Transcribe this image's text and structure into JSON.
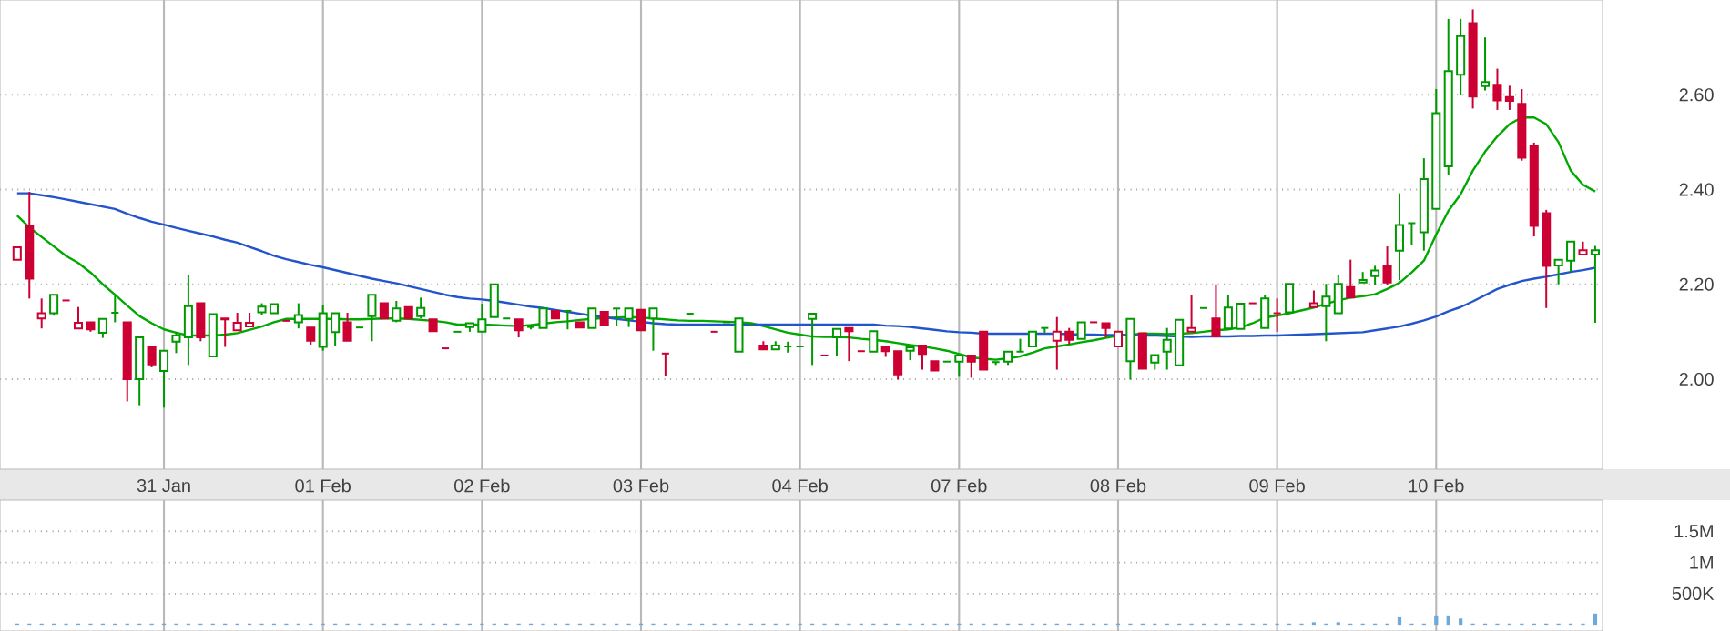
{
  "chart_data": [
    {
      "type": "candlestick",
      "categories": [
        null,
        null,
        null,
        null,
        null,
        null,
        null,
        null,
        null,
        null,
        null,
        null,
        "31 Jan",
        null,
        null,
        null,
        null,
        null,
        null,
        null,
        null,
        null,
        null,
        null,
        null,
        "01 Feb",
        null,
        null,
        null,
        null,
        null,
        null,
        null,
        null,
        null,
        null,
        null,
        null,
        "02 Feb",
        null,
        null,
        null,
        null,
        null,
        null,
        null,
        null,
        null,
        null,
        null,
        null,
        "03 Feb",
        null,
        null,
        null,
        null,
        null,
        null,
        null,
        null,
        null,
        null,
        null,
        null,
        "04 Feb",
        null,
        null,
        null,
        null,
        null,
        null,
        null,
        null,
        null,
        null,
        null,
        null,
        "07 Feb",
        null,
        null,
        null,
        null,
        null,
        null,
        null,
        null,
        null,
        null,
        null,
        null,
        "08 Feb",
        null,
        null,
        null,
        null,
        null,
        null,
        null,
        null,
        null,
        null,
        null,
        null,
        "09 Feb",
        null,
        null,
        null,
        null,
        null,
        null,
        null,
        null,
        null,
        null,
        null,
        null,
        "10 Feb",
        null,
        null,
        null,
        null,
        null,
        null,
        null,
        null,
        null,
        null,
        null,
        null,
        null
      ],
      "ohlc": [
        [
          2.252,
          2.278,
          2.252,
          2.278
        ],
        [
          2.324,
          2.395,
          2.17,
          2.212
        ],
        [
          2.128,
          2.17,
          2.107,
          2.139
        ],
        [
          2.139,
          2.178,
          2.134,
          2.178
        ],
        [
          2.166,
          2.166,
          2.166,
          2.166
        ],
        [
          2.107,
          2.152,
          2.107,
          2.119
        ],
        [
          2.12,
          2.12,
          2.1,
          2.105
        ],
        [
          2.098,
          2.127,
          2.087,
          2.127
        ],
        [
          2.14,
          2.178,
          2.12,
          2.14
        ],
        [
          2.12,
          2.12,
          1.953,
          2.0
        ],
        [
          2.0,
          2.088,
          1.945,
          2.088
        ],
        [
          2.069,
          2.069,
          2.025,
          2.031
        ],
        [
          2.017,
          2.06,
          1.94,
          2.06
        ],
        [
          2.079,
          2.1,
          2.055,
          2.092
        ],
        [
          2.088,
          2.22,
          2.03,
          2.154
        ],
        [
          2.16,
          2.16,
          2.08,
          2.088
        ],
        [
          2.048,
          2.137,
          2.048,
          2.137
        ],
        [
          2.128,
          2.128,
          2.068,
          2.126
        ],
        [
          2.103,
          2.14,
          2.103,
          2.119
        ],
        [
          2.111,
          2.14,
          2.111,
          2.119
        ],
        [
          2.141,
          2.16,
          2.136,
          2.153
        ],
        [
          2.139,
          2.158,
          2.139,
          2.158
        ],
        [
          2.123,
          2.123,
          2.123,
          2.123
        ],
        [
          2.12,
          2.16,
          2.107,
          2.135
        ],
        [
          2.109,
          2.109,
          2.073,
          2.081
        ],
        [
          2.068,
          2.157,
          2.06,
          2.139
        ],
        [
          2.099,
          2.139,
          2.07,
          2.139
        ],
        [
          2.12,
          2.14,
          2.081,
          2.081
        ],
        [
          2.109,
          2.109,
          2.109,
          2.109
        ],
        [
          2.133,
          2.178,
          2.08,
          2.178
        ],
        [
          2.16,
          2.16,
          2.128,
          2.128
        ],
        [
          2.123,
          2.165,
          2.12,
          2.149
        ],
        [
          2.152,
          2.152,
          2.128,
          2.128
        ],
        [
          2.133,
          2.172,
          2.128,
          2.15
        ],
        [
          2.126,
          2.126,
          2.101,
          2.101
        ],
        [
          2.065,
          2.065,
          2.065,
          2.065
        ],
        [
          2.1,
          2.1,
          2.1,
          2.1
        ],
        [
          2.11,
          2.118,
          2.1,
          2.118
        ],
        [
          2.1,
          2.159,
          2.1,
          2.126
        ],
        [
          2.131,
          2.2,
          2.131,
          2.2
        ],
        [
          2.128,
          2.128,
          2.128,
          2.128
        ],
        [
          2.126,
          2.126,
          2.088,
          2.103
        ],
        [
          2.11,
          2.114,
          2.105,
          2.11
        ],
        [
          2.108,
          2.149,
          2.108,
          2.149
        ],
        [
          2.144,
          2.144,
          2.128,
          2.128
        ],
        [
          2.144,
          2.144,
          2.105,
          2.144
        ],
        [
          2.12,
          2.12,
          2.109,
          2.109
        ],
        [
          2.108,
          2.149,
          2.108,
          2.149
        ],
        [
          2.142,
          2.142,
          2.114,
          2.114
        ],
        [
          2.149,
          2.149,
          2.113,
          2.149
        ],
        [
          2.127,
          2.149,
          2.11,
          2.149
        ],
        [
          2.146,
          2.146,
          2.103,
          2.103
        ],
        [
          2.128,
          2.149,
          2.06,
          2.149
        ],
        [
          2.054,
          2.054,
          2.006,
          2.054
        ],
        null,
        [
          2.138,
          2.138,
          2.138,
          2.138
        ],
        null,
        [
          2.1,
          2.1,
          2.1,
          2.1
        ],
        [
          2.12,
          2.12,
          2.12,
          2.12
        ],
        [
          2.058,
          2.128,
          2.058,
          2.128
        ],
        [
          2.117,
          2.117,
          2.117,
          2.117
        ],
        [
          2.071,
          2.08,
          2.063,
          2.063
        ],
        [
          2.063,
          2.08,
          2.063,
          2.071
        ],
        [
          2.069,
          2.079,
          2.056,
          2.069
        ],
        [
          2.069,
          2.069,
          2.069,
          2.069
        ],
        [
          2.127,
          2.138,
          2.03,
          2.138
        ],
        [
          2.05,
          2.05,
          2.05,
          2.05
        ],
        [
          2.088,
          2.106,
          2.049,
          2.106
        ],
        [
          2.108,
          2.108,
          2.038,
          2.101
        ],
        [
          2.059,
          2.059,
          2.059,
          2.059
        ],
        [
          2.058,
          2.101,
          2.058,
          2.101
        ],
        [
          2.069,
          2.069,
          2.047,
          2.059
        ],
        [
          2.059,
          2.059,
          1.999,
          2.01
        ],
        [
          2.06,
          2.067,
          2.04,
          2.067
        ],
        [
          2.071,
          2.071,
          2.02,
          2.053
        ],
        [
          2.038,
          2.038,
          2.018,
          2.018
        ],
        [
          2.037,
          2.037,
          2.037,
          2.037
        ],
        [
          2.037,
          2.05,
          2.005,
          2.05
        ],
        [
          2.05,
          2.05,
          2.003,
          2.037
        ],
        [
          2.1,
          2.1,
          2.02,
          2.02
        ],
        [
          2.036,
          2.036,
          2.03,
          2.036
        ],
        [
          2.037,
          2.058,
          2.03,
          2.058
        ],
        [
          2.058,
          2.085,
          2.058,
          2.058
        ],
        [
          2.069,
          2.1,
          2.069,
          2.1
        ],
        [
          2.108,
          2.108,
          2.098,
          2.108
        ],
        [
          2.081,
          2.131,
          2.02,
          2.1
        ],
        [
          2.1,
          2.108,
          2.074,
          2.083
        ],
        [
          2.085,
          2.12,
          2.085,
          2.12
        ],
        [
          2.12,
          2.12,
          2.12,
          2.12
        ],
        [
          2.118,
          2.118,
          2.088,
          2.108
        ],
        [
          2.069,
          2.1,
          2.069,
          2.1
        ],
        [
          2.038,
          2.127,
          1.999,
          2.127
        ],
        [
          2.097,
          2.097,
          2.022,
          2.022
        ],
        [
          2.035,
          2.051,
          2.02,
          2.051
        ],
        [
          2.058,
          2.108,
          2.02,
          2.083
        ],
        [
          2.029,
          2.125,
          2.029,
          2.125
        ],
        [
          2.1,
          2.178,
          2.1,
          2.108
        ],
        [
          2.15,
          2.15,
          2.15,
          2.15
        ],
        [
          2.128,
          2.2,
          2.09,
          2.09
        ],
        [
          2.107,
          2.178,
          2.107,
          2.151
        ],
        [
          2.106,
          2.159,
          2.106,
          2.159
        ],
        [
          2.16,
          2.16,
          2.16,
          2.16
        ],
        [
          2.108,
          2.177,
          2.108,
          2.17
        ],
        [
          2.139,
          2.17,
          2.1,
          2.139
        ],
        [
          2.141,
          2.201,
          2.141,
          2.201
        ],
        null,
        [
          2.152,
          2.187,
          2.152,
          2.16
        ],
        [
          2.154,
          2.201,
          2.08,
          2.174
        ],
        [
          2.139,
          2.219,
          2.139,
          2.201
        ],
        [
          2.194,
          2.252,
          2.172,
          2.172
        ],
        [
          2.204,
          2.226,
          2.204,
          2.209
        ],
        [
          2.217,
          2.239,
          2.199,
          2.229
        ],
        [
          2.24,
          2.28,
          2.199,
          2.204
        ],
        [
          2.271,
          2.392,
          2.209,
          2.325
        ],
        [
          2.329,
          2.329,
          2.284,
          2.329
        ],
        [
          2.31,
          2.466,
          2.271,
          2.422
        ],
        [
          2.359,
          2.612,
          2.359,
          2.561
        ],
        [
          2.449,
          2.76,
          2.43,
          2.65
        ],
        [
          2.642,
          2.76,
          2.6,
          2.724
        ],
        [
          2.751,
          2.78,
          2.571,
          2.596
        ],
        [
          2.618,
          2.721,
          2.609,
          2.627
        ],
        [
          2.621,
          2.655,
          2.568,
          2.588
        ],
        [
          2.595,
          2.619,
          2.568,
          2.587
        ],
        [
          2.581,
          2.612,
          2.461,
          2.467
        ],
        [
          2.493,
          2.499,
          2.301,
          2.323
        ],
        [
          2.35,
          2.357,
          2.15,
          2.239
        ],
        [
          2.24,
          2.252,
          2.2,
          2.252
        ],
        [
          2.25,
          2.29,
          2.227,
          2.29
        ],
        [
          2.263,
          2.29,
          2.263,
          2.272
        ],
        [
          2.263,
          2.281,
          2.119,
          2.272
        ]
      ],
      "colors": [
        "#cc0033",
        "#cc0033",
        "#cc0033",
        "#009900",
        "#cc0033",
        "#cc0033",
        "#cc0033",
        "#009900",
        "#009900",
        "#cc0033",
        "#009900",
        "#cc0033",
        "#009900",
        "#009900",
        "#009900",
        "#cc0033",
        "#009900",
        "#cc0033",
        "#cc0033",
        "#cc0033",
        "#009900",
        "#009900",
        "#cc0033",
        "#009900",
        "#cc0033",
        "#009900",
        "#009900",
        "#cc0033",
        "#009900",
        "#009900",
        "#cc0033",
        "#009900",
        "#cc0033",
        "#009900",
        "#cc0033",
        "#cc0033",
        "#009900",
        "#009900",
        "#009900",
        "#009900",
        "#009900",
        "#cc0033",
        "#009900",
        "#009900",
        "#cc0033",
        "#009900",
        "#cc0033",
        "#009900",
        "#cc0033",
        "#009900",
        "#009900",
        "#cc0033",
        "#009900",
        "#cc0033",
        null,
        "#009900",
        null,
        "#cc0033",
        "#009900",
        "#009900",
        "#009900",
        "#cc0033",
        "#009900",
        "#009900",
        "#009900",
        "#009900",
        "#cc0033",
        "#009900",
        "#cc0033",
        "#cc0033",
        "#009900",
        "#cc0033",
        "#cc0033",
        "#009900",
        "#cc0033",
        "#cc0033",
        "#009900",
        "#009900",
        "#cc0033",
        "#cc0033",
        "#009900",
        "#009900",
        "#009900",
        "#009900",
        "#009900",
        "#cc0033",
        "#cc0033",
        "#009900",
        "#cc0033",
        "#cc0033",
        "#cc0033",
        "#009900",
        "#cc0033",
        "#009900",
        "#009900",
        "#009900",
        "#cc0033",
        "#009900",
        "#cc0033",
        "#009900",
        "#009900",
        "#cc0033",
        "#009900",
        "#cc0033",
        "#009900",
        null,
        "#cc0033",
        "#009900",
        "#009900",
        "#cc0033",
        "#009900",
        "#009900",
        "#cc0033",
        "#009900",
        "#009900",
        "#009900",
        "#009900",
        "#009900",
        "#009900",
        "#cc0033",
        "#009900",
        "#cc0033",
        "#cc0033",
        "#cc0033",
        "#cc0033",
        "#cc0033",
        "#009900",
        "#009900",
        "#cc0033",
        "#009900"
      ],
      "series": [
        {
          "type": "line",
          "color": "#00a800",
          "values": [
            2.345,
            2.32,
            2.3,
            2.28,
            2.26,
            2.245,
            2.225,
            2.2,
            2.178,
            2.155,
            2.133,
            2.118,
            2.105,
            2.098,
            2.092,
            2.092,
            2.092,
            2.094,
            2.097,
            2.104,
            2.111,
            2.12,
            2.127,
            2.127,
            2.127,
            2.127,
            2.127,
            2.126,
            2.126,
            2.127,
            2.128,
            2.128,
            2.127,
            2.125,
            2.123,
            2.12,
            2.115,
            2.115,
            2.115,
            2.114,
            2.113,
            2.112,
            2.114,
            2.117,
            2.12,
            2.122,
            2.125,
            2.127,
            2.129,
            2.13,
            2.131,
            2.13,
            2.128,
            2.126,
            2.124,
            2.123,
            2.123,
            2.122,
            2.121,
            2.12,
            2.118,
            2.112,
            2.105,
            2.098,
            2.094,
            2.09,
            2.089,
            2.089,
            2.088,
            2.085,
            2.083,
            2.08,
            2.076,
            2.072,
            2.069,
            2.065,
            2.06,
            2.053,
            2.046,
            2.043,
            2.041,
            2.044,
            2.048,
            2.056,
            2.065,
            2.069,
            2.073,
            2.078,
            2.082,
            2.087,
            2.092,
            2.094,
            2.096,
            2.096,
            2.095,
            2.096,
            2.097,
            2.1,
            2.103,
            2.105,
            2.109,
            2.118,
            2.13,
            2.134,
            2.139,
            2.145,
            2.151,
            2.159,
            2.166,
            2.172,
            2.175,
            2.179,
            2.19,
            2.203,
            2.225,
            2.25,
            2.305,
            2.355,
            2.39,
            2.44,
            2.48,
            2.512,
            2.538,
            2.552,
            2.552,
            2.538,
            2.5,
            2.44,
            2.41,
            2.396
          ]
        },
        {
          "type": "line",
          "color": "#2255cc",
          "values": [
            2.392,
            2.392,
            2.388,
            2.384,
            2.379,
            2.374,
            2.369,
            2.364,
            2.359,
            2.349,
            2.34,
            2.332,
            2.326,
            2.319,
            2.313,
            2.307,
            2.301,
            2.294,
            2.288,
            2.279,
            2.27,
            2.26,
            2.253,
            2.247,
            2.241,
            2.236,
            2.23,
            2.224,
            2.218,
            2.212,
            2.207,
            2.202,
            2.196,
            2.19,
            2.184,
            2.178,
            2.173,
            2.17,
            2.168,
            2.165,
            2.161,
            2.157,
            2.153,
            2.15,
            2.146,
            2.142,
            2.138,
            2.134,
            2.131,
            2.127,
            2.124,
            2.121,
            2.118,
            2.116,
            2.115,
            2.115,
            2.115,
            2.115,
            2.115,
            2.115,
            2.115,
            2.115,
            2.115,
            2.115,
            2.115,
            2.115,
            2.115,
            2.115,
            2.115,
            2.115,
            2.115,
            2.113,
            2.112,
            2.11,
            2.107,
            2.104,
            2.101,
            2.099,
            2.098,
            2.096,
            2.096,
            2.096,
            2.096,
            2.096,
            2.096,
            2.096,
            2.095,
            2.094,
            2.094,
            2.093,
            2.093,
            2.093,
            2.092,
            2.092,
            2.091,
            2.09,
            2.089,
            2.09,
            2.09,
            2.09,
            2.091,
            2.091,
            2.092,
            2.092,
            2.093,
            2.094,
            2.095,
            2.096,
            2.097,
            2.098,
            2.099,
            2.103,
            2.107,
            2.111,
            2.117,
            2.124,
            2.132,
            2.143,
            2.152,
            2.164,
            2.177,
            2.19,
            2.199,
            2.207,
            2.212,
            2.216,
            2.221,
            2.226,
            2.23,
            2.235
          ]
        }
      ],
      "ylim": [
        1.81,
        2.8
      ],
      "yticks": [
        {
          "value": 2,
          "label": "2.00"
        },
        {
          "value": 2.2,
          "label": "2.20"
        },
        {
          "value": 2.4,
          "label": "2.40"
        },
        {
          "value": 2.6,
          "label": "2.60"
        }
      ],
      "grid": true
    },
    {
      "type": "bar",
      "categories": [
        null,
        null,
        null,
        null,
        null,
        null,
        null,
        null,
        null,
        null,
        null,
        null,
        null,
        null,
        null,
        null,
        null,
        null,
        null,
        null,
        null,
        null,
        null,
        null,
        null,
        null,
        null,
        null,
        null,
        null,
        null,
        null,
        null,
        null,
        null,
        null,
        null,
        null,
        null,
        null,
        null,
        null,
        null,
        null,
        null,
        null,
        null,
        null,
        null,
        null,
        null,
        null,
        null,
        null,
        null,
        null,
        null,
        null,
        null,
        null,
        null,
        null,
        null,
        null,
        null,
        null,
        null,
        null,
        null,
        null,
        null,
        null,
        null,
        null,
        null,
        null,
        null,
        null,
        null,
        null,
        null,
        null,
        null,
        null,
        null,
        null,
        null,
        null,
        null,
        null,
        null,
        null,
        null,
        null,
        null,
        null,
        null,
        null,
        null,
        null,
        null,
        null,
        null,
        null,
        null,
        null,
        null,
        null,
        null,
        null,
        null,
        null,
        null,
        null,
        null,
        null,
        null,
        null,
        null,
        null,
        null,
        null,
        null,
        null,
        null,
        null,
        null,
        null,
        null,
        null
      ],
      "values": [
        20000,
        20000,
        20000,
        20000,
        20000,
        20000,
        20000,
        20000,
        20000,
        20000,
        20000,
        20000,
        20000,
        20000,
        20000,
        20000,
        20000,
        20000,
        20000,
        20000,
        20000,
        20000,
        20000,
        20000,
        20000,
        20000,
        20000,
        20000,
        20000,
        20000,
        20000,
        20000,
        20000,
        20000,
        20000,
        20000,
        20000,
        20000,
        20000,
        20000,
        20000,
        20000,
        20000,
        20000,
        20000,
        20000,
        20000,
        20000,
        20000,
        20000,
        20000,
        20000,
        20000,
        20000,
        20000,
        20000,
        20000,
        20000,
        20000,
        20000,
        20000,
        20000,
        20000,
        20000,
        20000,
        20000,
        20000,
        20000,
        20000,
        20000,
        20000,
        20000,
        20000,
        20000,
        20000,
        20000,
        20000,
        20000,
        20000,
        20000,
        20000,
        20000,
        20000,
        20000,
        20000,
        20000,
        20000,
        20000,
        20000,
        20000,
        20000,
        20000,
        20000,
        20000,
        20000,
        20000,
        20000,
        20000,
        20000,
        20000,
        20000,
        20000,
        20000,
        20000,
        20000,
        20000,
        40000,
        20000,
        40000,
        20000,
        20000,
        20000,
        20000,
        120000,
        20000,
        20000,
        150000,
        150000,
        100000,
        20000,
        20000,
        20000,
        20000,
        20000,
        20000,
        20000,
        20000,
        20000,
        20000,
        180000
      ],
      "color": "#6fa8dc",
      "ylim": [
        -100000,
        2000000
      ],
      "yticks": [
        {
          "value": 500000,
          "label": "500K"
        },
        {
          "value": 1000000,
          "label": "1M"
        },
        {
          "value": 1500000,
          "label": "1.5M"
        }
      ],
      "tick_labels": "y",
      "grid": true
    }
  ]
}
